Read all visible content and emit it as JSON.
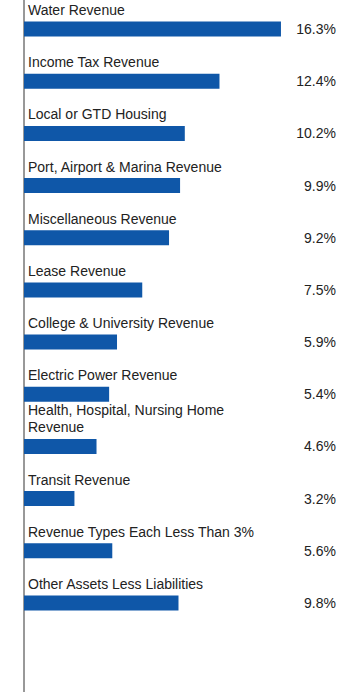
{
  "chart_data": {
    "type": "bar",
    "orientation": "horizontal",
    "categories": [
      "Water Revenue",
      "Income Tax Revenue",
      "Local or GTD Housing",
      "Port, Airport & Marina Revenue",
      "Miscellaneous Revenue",
      "Lease Revenue",
      "College & University Revenue",
      "Electric Power Revenue",
      "Health, Hospital, Nursing Home Revenue",
      "Transit Revenue",
      "Revenue Types Each Less Than 3%",
      "Other Assets Less Liabilities"
    ],
    "values": [
      16.3,
      12.4,
      10.2,
      9.9,
      9.2,
      7.5,
      5.9,
      5.4,
      4.6,
      3.2,
      5.6,
      9.8
    ],
    "value_labels": [
      "16.3%",
      "12.4%",
      "10.2%",
      "9.9%",
      "9.2%",
      "7.5%",
      "5.9%",
      "5.4%",
      "4.6%",
      "3.2%",
      "5.6%",
      "9.8%"
    ],
    "color": "#0f57a8",
    "xlim": [
      0,
      17
    ],
    "tick_labels": false,
    "data_labels": true,
    "grid": false
  }
}
